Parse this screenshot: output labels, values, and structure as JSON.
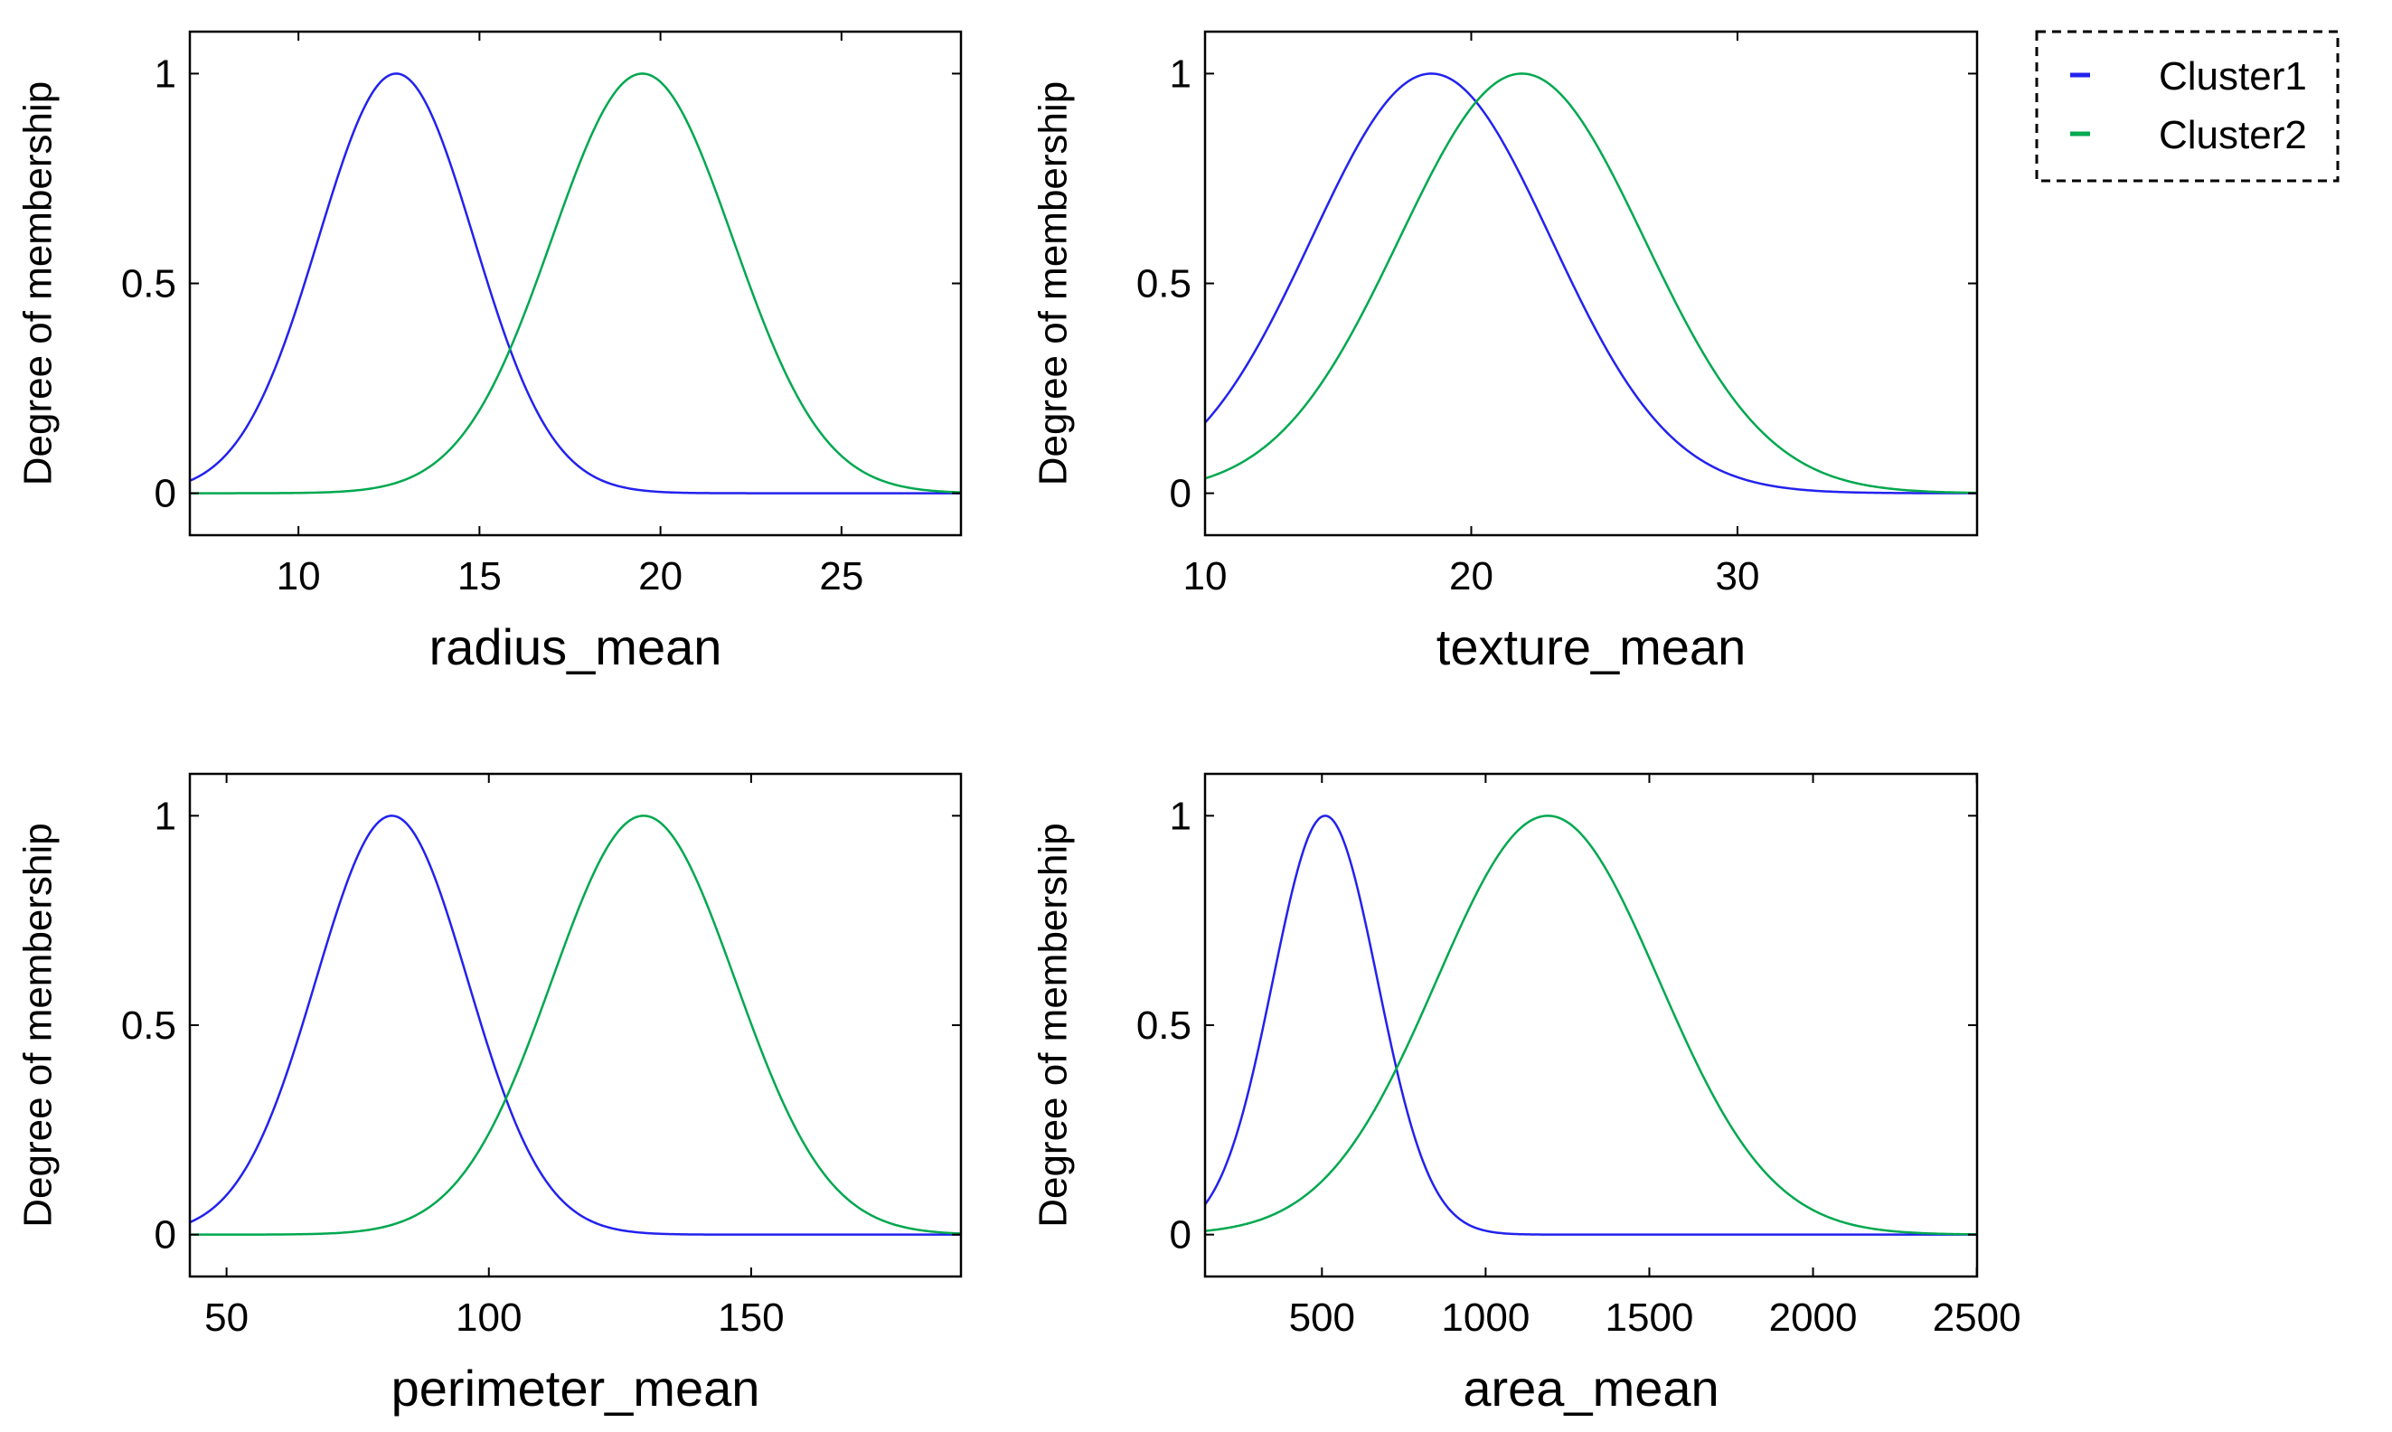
{
  "chart_data": [
    {
      "type": "line",
      "xlabel": "radius_mean",
      "ylabel": "Degree of membership",
      "xlim": [
        7,
        28.3
      ],
      "ylim": [
        -0.1,
        1.1
      ],
      "xticks": [
        10,
        15,
        20,
        25
      ],
      "yticks": [
        0,
        0.5,
        1
      ],
      "series": [
        {
          "name": "Cluster1",
          "color": "#2222ee",
          "mean": 12.7,
          "sigma": 2.15
        },
        {
          "name": "Cluster2",
          "color": "#00a84f",
          "mean": 19.5,
          "sigma": 2.5
        }
      ]
    },
    {
      "type": "line",
      "xlabel": "texture_mean",
      "ylabel": "Degree of membership",
      "xlim": [
        10,
        39
      ],
      "ylim": [
        -0.1,
        1.1
      ],
      "xticks": [
        10,
        20,
        30
      ],
      "yticks": [
        0,
        0.5,
        1
      ],
      "series": [
        {
          "name": "Cluster1",
          "color": "#2222ee",
          "mean": 18.5,
          "sigma": 4.5
        },
        {
          "name": "Cluster2",
          "color": "#00a84f",
          "mean": 21.9,
          "sigma": 4.6
        }
      ]
    },
    {
      "type": "line",
      "xlabel": "perimeter_mean",
      "ylabel": "Degree of membership",
      "xlim": [
        43,
        190
      ],
      "ylim": [
        -0.1,
        1.1
      ],
      "xticks": [
        50,
        100,
        150
      ],
      "yticks": [
        0,
        0.5,
        1
      ],
      "series": [
        {
          "name": "Cluster1",
          "color": "#2222ee",
          "mean": 81.5,
          "sigma": 14.5
        },
        {
          "name": "Cluster2",
          "color": "#00a84f",
          "mean": 129.5,
          "sigma": 17.5
        }
      ]
    },
    {
      "type": "line",
      "xlabel": "area_mean",
      "ylabel": "Degree of membership",
      "xlim": [
        143,
        2501
      ],
      "ylim": [
        -0.1,
        1.1
      ],
      "xticks": [
        500,
        1000,
        1500,
        2000,
        2500
      ],
      "yticks": [
        0,
        0.5,
        1
      ],
      "series": [
        {
          "name": "Cluster1",
          "color": "#2222ee",
          "mean": 510,
          "sigma": 160
        },
        {
          "name": "Cluster2",
          "color": "#00a84f",
          "mean": 1190,
          "sigma": 340
        }
      ]
    }
  ],
  "legend": {
    "position": "top-right",
    "entries": [
      {
        "label": "Cluster1",
        "color": "#2222ee"
      },
      {
        "label": "Cluster2",
        "color": "#00a84f"
      }
    ]
  }
}
